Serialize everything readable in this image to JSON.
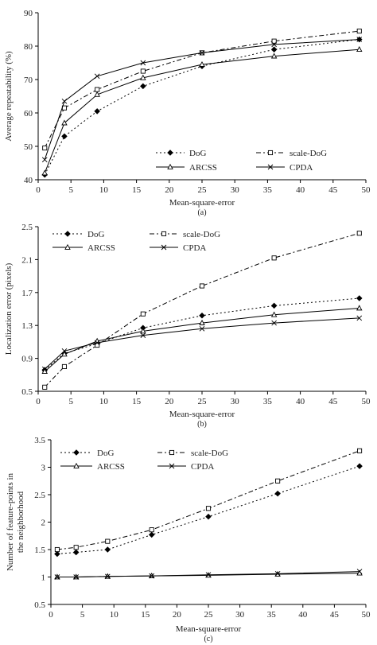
{
  "chart_data": [
    {
      "type": "line",
      "caption": "(a)",
      "xlabel": "Mean-square-error",
      "ylabel": "Average repeatability (%)",
      "xlim": [
        0,
        50
      ],
      "ylim": [
        40,
        90
      ],
      "xticks": [
        "0",
        "5",
        "10",
        "15",
        "20",
        "25",
        "30",
        "35",
        "40",
        "45",
        "50"
      ],
      "yticks": [
        "40",
        "50",
        "60",
        "70",
        "80",
        "90"
      ],
      "grid": false,
      "legend": "lower-right",
      "x": [
        1,
        4,
        9,
        16,
        25,
        36,
        49
      ],
      "series": [
        {
          "name": "DoG",
          "marker": "diamond",
          "dash": "2,3",
          "values": [
            41.5,
            53,
            60.5,
            68,
            74,
            79,
            82
          ]
        },
        {
          "name": "scale-DoG",
          "marker": "square",
          "dash": "6,3,2,3",
          "values": [
            49.5,
            61.5,
            67,
            72.5,
            78,
            81.5,
            84.5
          ]
        },
        {
          "name": "ARCSS",
          "marker": "triangle",
          "dash": "",
          "values": [
            42,
            57,
            65.5,
            70.5,
            74.5,
            77,
            79
          ]
        },
        {
          "name": "CPDA",
          "marker": "x",
          "dash": "",
          "values": [
            46,
            63.5,
            71,
            75,
            78,
            80.5,
            82
          ]
        }
      ]
    },
    {
      "type": "line",
      "caption": "(b)",
      "xlabel": "Mean-square-error",
      "ylabel": "Localization error (pixels)",
      "xlim": [
        0,
        50
      ],
      "ylim": [
        0.5,
        2.5
      ],
      "xticks": [
        "0",
        "5",
        "10",
        "15",
        "20",
        "25",
        "30",
        "35",
        "40",
        "45",
        "50"
      ],
      "yticks": [
        "0.5",
        "0.9",
        "1.3",
        "1.7",
        "2.1",
        "2.5"
      ],
      "grid": false,
      "legend": "top-left",
      "x": [
        1,
        4,
        9,
        16,
        25,
        36,
        49
      ],
      "series": [
        {
          "name": "DoG",
          "marker": "diamond",
          "dash": "2,3",
          "values": [
            0.76,
            0.96,
            1.08,
            1.27,
            1.42,
            1.54,
            1.63
          ]
        },
        {
          "name": "scale-DoG",
          "marker": "square",
          "dash": "6,3,2,3",
          "values": [
            0.55,
            0.8,
            1.06,
            1.44,
            1.78,
            2.12,
            2.42
          ]
        },
        {
          "name": "ARCSS",
          "marker": "triangle",
          "dash": "",
          "values": [
            0.74,
            0.95,
            1.11,
            1.23,
            1.33,
            1.43,
            1.51
          ]
        },
        {
          "name": "CPDA",
          "marker": "x",
          "dash": "",
          "values": [
            0.77,
            0.99,
            1.09,
            1.18,
            1.26,
            1.33,
            1.39
          ]
        }
      ]
    },
    {
      "type": "line",
      "caption": "(c)",
      "xlabel": "Mean-square-error",
      "ylabel": "Number of feature-points in the neighborhood",
      "xlim": [
        0,
        50
      ],
      "ylim": [
        0.5,
        3.5
      ],
      "xticks": [
        "0",
        "5",
        "10",
        "15",
        "20",
        "25",
        "30",
        "35",
        "40",
        "45",
        "50"
      ],
      "yticks": [
        "0.5",
        "1",
        "1.5",
        "2",
        "2.5",
        "3",
        "3.5"
      ],
      "grid": false,
      "legend": "top-left",
      "x": [
        1,
        4,
        9,
        16,
        25,
        36,
        49
      ],
      "series": [
        {
          "name": "DoG",
          "marker": "diamond",
          "dash": "2,3",
          "values": [
            1.42,
            1.45,
            1.5,
            1.77,
            2.1,
            2.52,
            3.02
          ]
        },
        {
          "name": "scale-DoG",
          "marker": "square",
          "dash": "6,3,2,3",
          "values": [
            1.5,
            1.54,
            1.65,
            1.86,
            2.25,
            2.75,
            3.3
          ]
        },
        {
          "name": "ARCSS",
          "marker": "triangle",
          "dash": "",
          "values": [
            1.0,
            1.0,
            1.01,
            1.02,
            1.03,
            1.05,
            1.07
          ]
        },
        {
          "name": "CPDA",
          "marker": "x",
          "dash": "",
          "values": [
            1.0,
            1.0,
            1.01,
            1.02,
            1.04,
            1.06,
            1.1
          ]
        }
      ]
    }
  ]
}
